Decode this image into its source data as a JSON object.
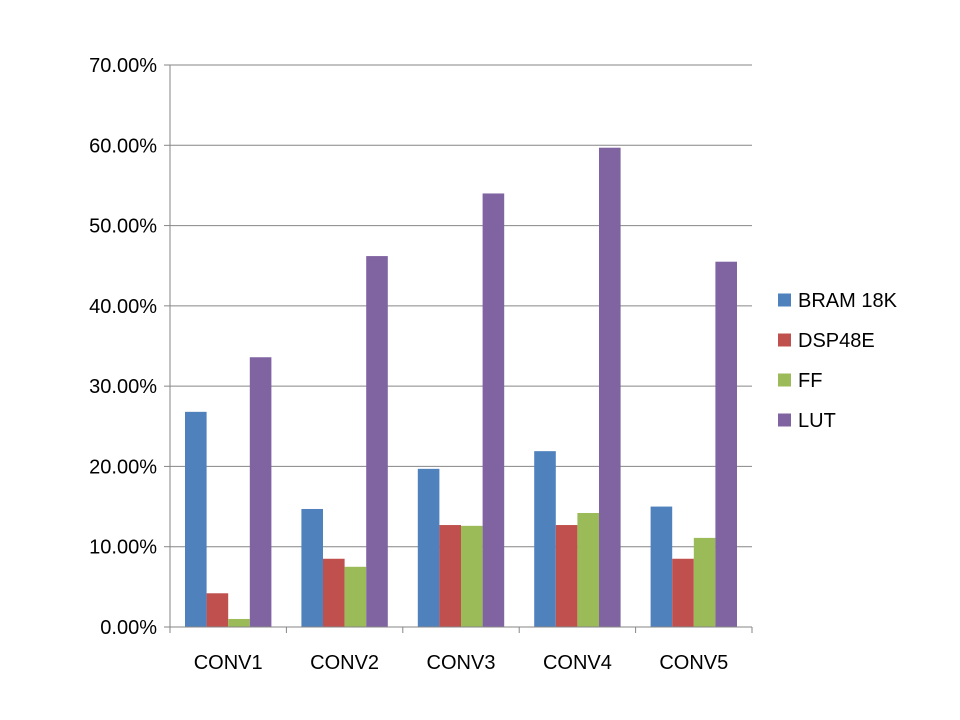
{
  "chart_data": {
    "type": "bar",
    "title": "",
    "xlabel": "",
    "ylabel": "",
    "categories": [
      "CONV1",
      "CONV2",
      "CONV3",
      "CONV4",
      "CONV5"
    ],
    "series": [
      {
        "name": "BRAM 18K",
        "color": "#4F81BD",
        "values": [
          26.8,
          14.7,
          19.7,
          21.9,
          15.0
        ]
      },
      {
        "name": "DSP48E",
        "color": "#C0504D",
        "values": [
          4.2,
          8.5,
          12.7,
          12.7,
          8.5
        ]
      },
      {
        "name": "FF",
        "color": "#9BBB59",
        "values": [
          1.0,
          7.5,
          12.6,
          14.2,
          11.1
        ]
      },
      {
        "name": "LUT",
        "color": "#8064A2",
        "values": [
          33.6,
          46.2,
          54.0,
          59.7,
          45.5
        ]
      }
    ],
    "ylim": [
      0,
      70
    ],
    "yticks": [
      0,
      10,
      20,
      30,
      40,
      50,
      60,
      70
    ],
    "ytick_labels": [
      "0.00%",
      "10.00%",
      "20.00%",
      "30.00%",
      "40.00%",
      "50.00%",
      "60.00%",
      "70.00%"
    ],
    "grid": true,
    "legend": "right"
  }
}
